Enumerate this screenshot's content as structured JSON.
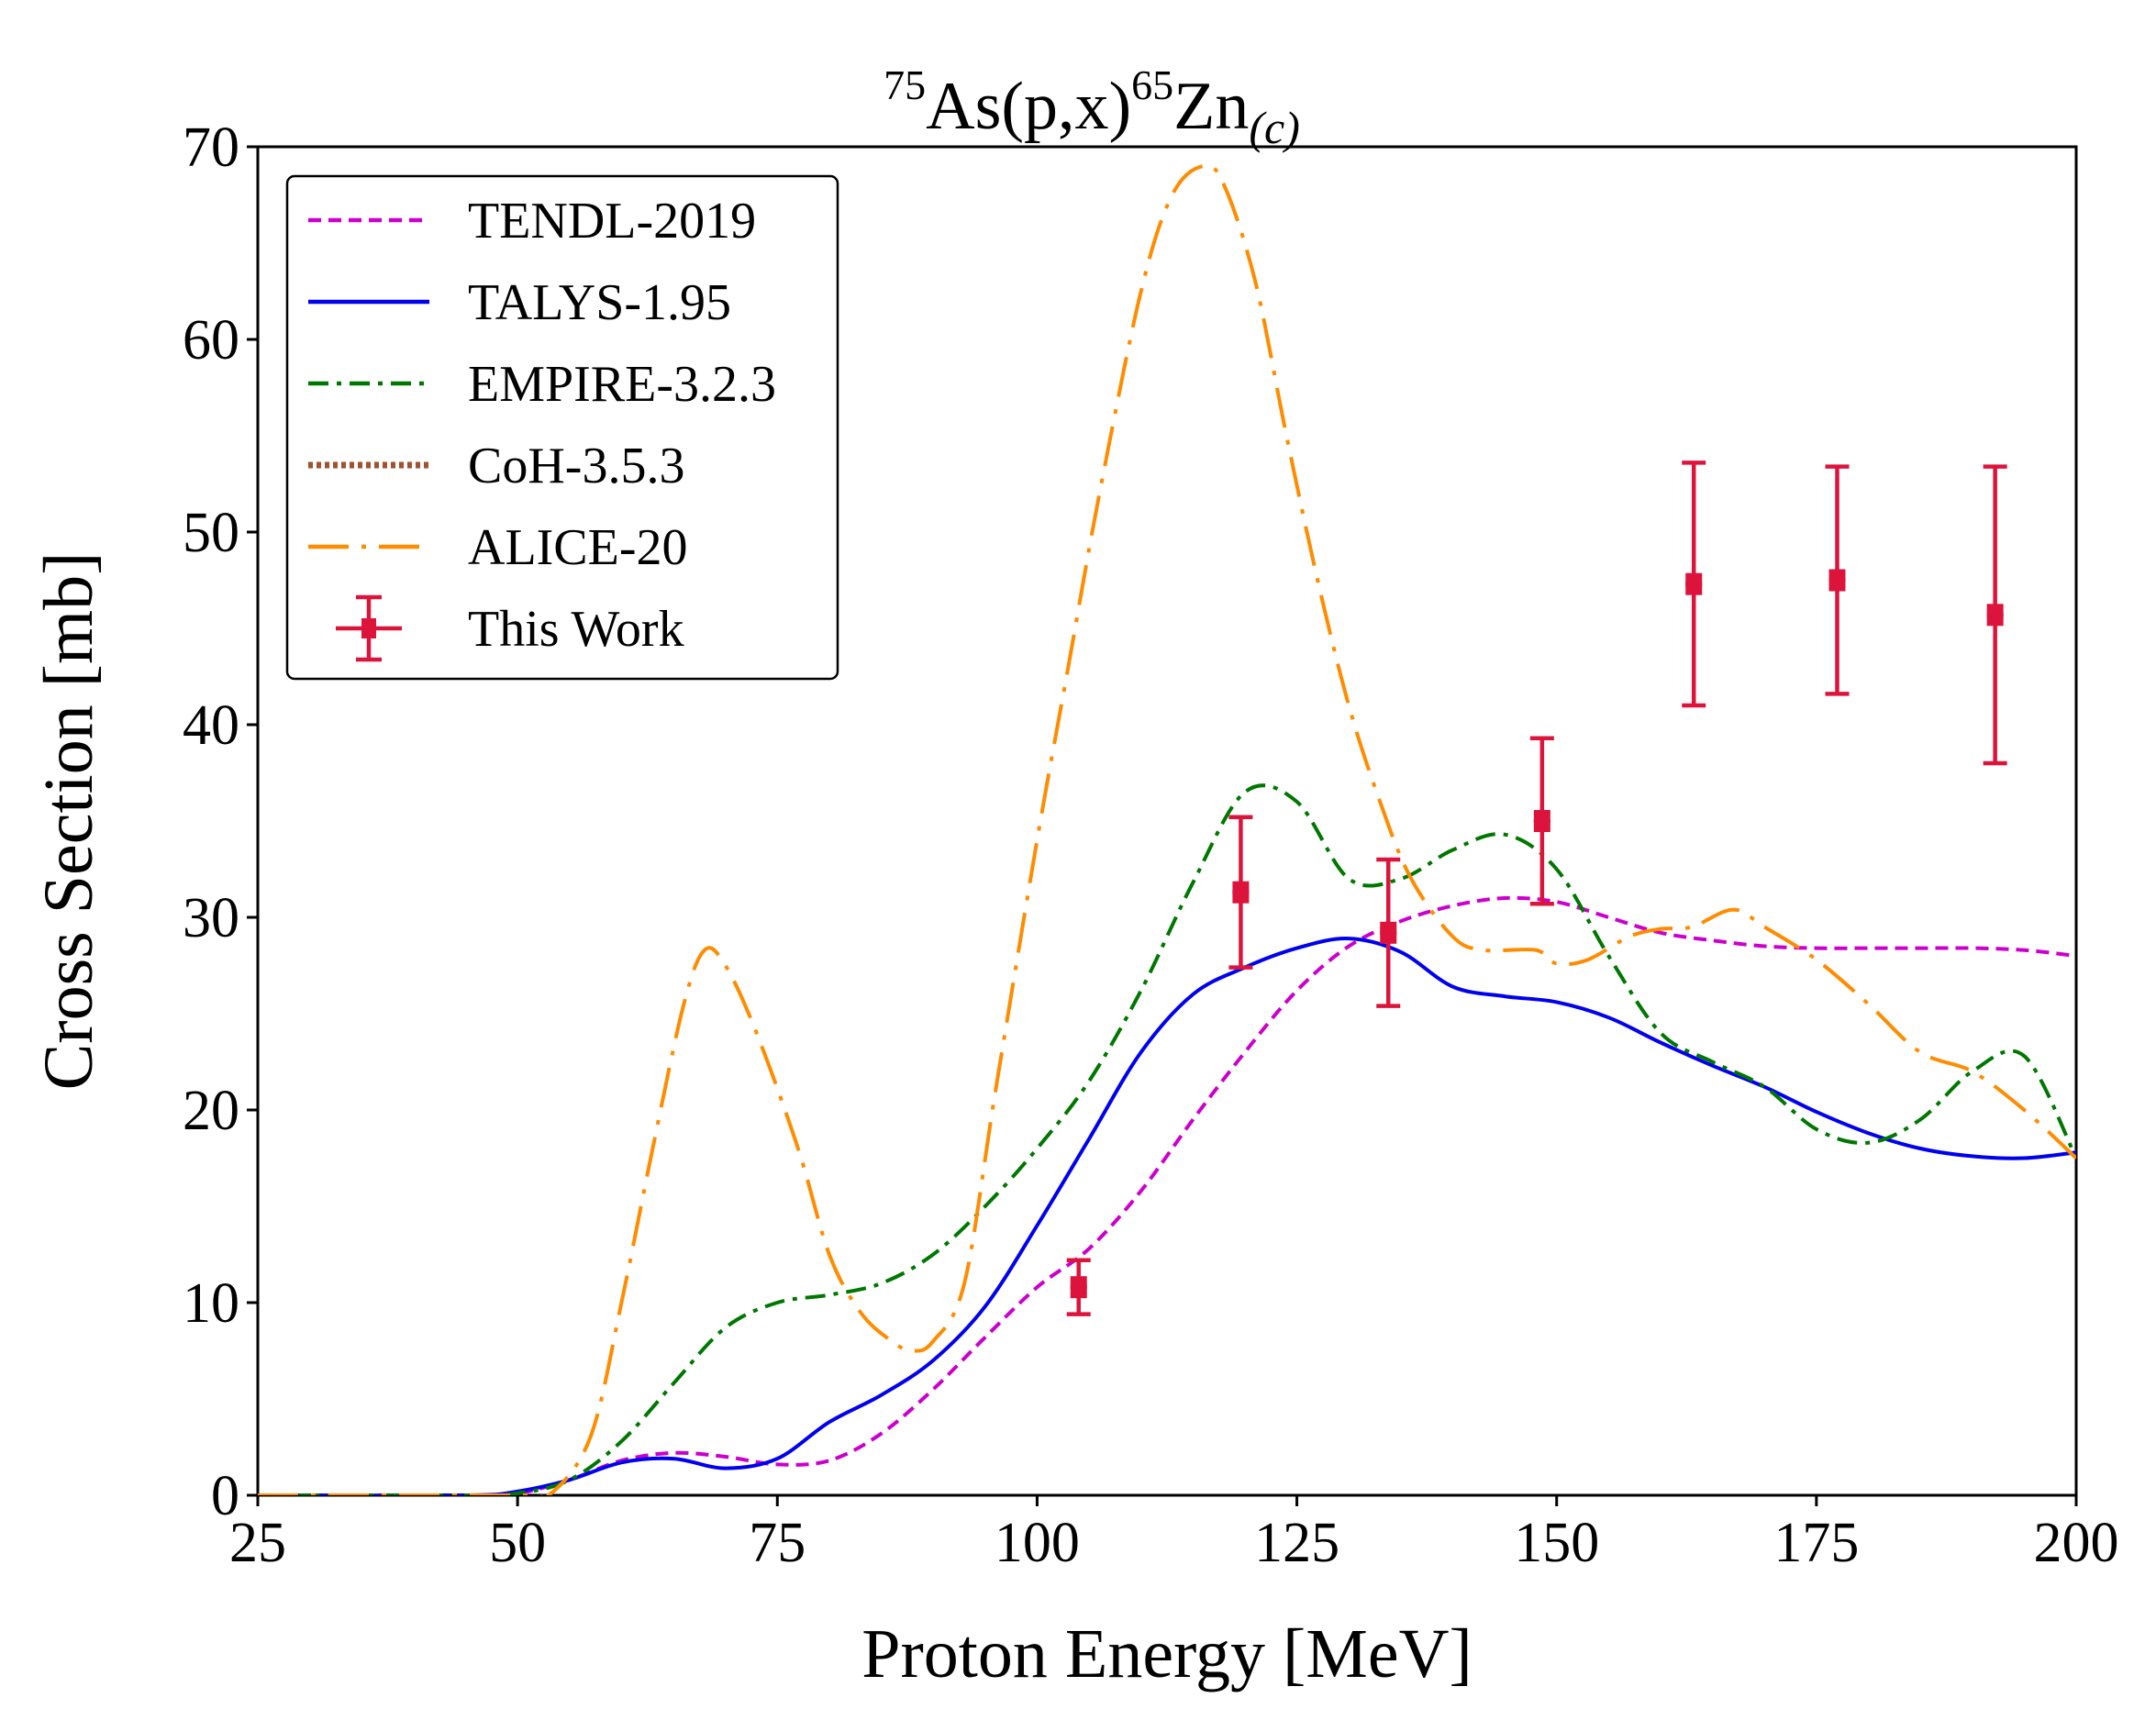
{
  "chart_data": {
    "type": "line",
    "title": {
      "pre_sup": "75",
      "main1": "As(p,x)",
      "mid_sup": "65",
      "main2": "Zn",
      "sub": "(c)"
    },
    "xlabel": "Proton Energy [MeV]",
    "ylabel": "Cross Section [mb]",
    "xlim": [
      25,
      200
    ],
    "ylim": [
      0,
      70
    ],
    "xticks": [
      25,
      50,
      75,
      100,
      125,
      150,
      175,
      200
    ],
    "yticks": [
      0,
      10,
      20,
      30,
      40,
      50,
      60,
      70
    ],
    "grid": false,
    "legend_position": "top-left",
    "series": [
      {
        "name": "TENDL-2019",
        "color": "#cc00cc",
        "style": "dashed",
        "x": [
          25,
          45,
          50,
          55,
          60,
          65,
          70,
          75,
          80,
          85,
          90,
          95,
          100,
          105,
          110,
          115,
          120,
          125,
          130,
          135,
          140,
          145,
          150,
          155,
          160,
          165,
          170,
          175,
          180,
          185,
          190,
          195,
          200
        ],
        "y": [
          0,
          0,
          0.1,
          0.8,
          1.8,
          2.2,
          2.0,
          1.6,
          1.8,
          3.2,
          5.5,
          8.2,
          10.8,
          12.8,
          15.8,
          19.5,
          23.0,
          26.2,
          28.5,
          29.8,
          30.6,
          31.0,
          30.8,
          30.0,
          29.2,
          28.8,
          28.5,
          28.4,
          28.4,
          28.4,
          28.4,
          28.3,
          28.0
        ]
      },
      {
        "name": "TALYS-1.95",
        "color": "#0000ee",
        "style": "solid",
        "x": [
          25,
          45,
          50,
          55,
          60,
          65,
          70,
          75,
          80,
          85,
          90,
          95,
          100,
          105,
          110,
          115,
          120,
          125,
          130,
          135,
          140,
          145,
          150,
          155,
          160,
          165,
          170,
          175,
          180,
          185,
          190,
          195,
          200
        ],
        "y": [
          0,
          0,
          0.2,
          0.8,
          1.7,
          1.9,
          1.4,
          1.9,
          3.8,
          5.2,
          7.0,
          9.8,
          14.0,
          18.5,
          23.0,
          26.0,
          27.4,
          28.4,
          28.9,
          28.2,
          26.4,
          25.9,
          25.6,
          24.8,
          23.5,
          22.3,
          21.2,
          19.9,
          18.8,
          18.0,
          17.6,
          17.5,
          17.8
        ]
      },
      {
        "name": "EMPIRE-3.2.3",
        "color": "#007700",
        "style": "dashdot",
        "x": [
          25,
          45,
          50,
          55,
          60,
          65,
          70,
          75,
          80,
          85,
          90,
          95,
          100,
          105,
          110,
          115,
          120,
          125,
          130,
          135,
          140,
          145,
          150,
          155,
          160,
          165,
          170,
          175,
          180,
          185,
          190,
          195,
          200
        ],
        "y": [
          0,
          0,
          0.1,
          0.8,
          2.8,
          5.8,
          8.7,
          10.0,
          10.4,
          11.0,
          12.5,
          15.0,
          18.0,
          21.5,
          26.2,
          31.8,
          36.5,
          36.0,
          32.0,
          32.0,
          33.5,
          34.3,
          32.5,
          28.0,
          24.0,
          22.5,
          21.2,
          19.0,
          18.3,
          19.5,
          22.0,
          22.8,
          17.5
        ]
      },
      {
        "name": "CoH-3.5.3",
        "color": "#a0522d",
        "style": "dotted",
        "x": [],
        "y": []
      },
      {
        "name": "ALICE-20",
        "color": "#ff8c00",
        "style": "longdashdot",
        "x": [
          25,
          50,
          53,
          57,
          60,
          63,
          66,
          68,
          70,
          73,
          77,
          80,
          83,
          86,
          88,
          90,
          93,
          96,
          100,
          103,
          106,
          110,
          113,
          116,
          118,
          121,
          124,
          127,
          130,
          133,
          136,
          140,
          143,
          148,
          150,
          153,
          157,
          160,
          163,
          167,
          170,
          175,
          180,
          185,
          190,
          195,
          200
        ],
        "y": [
          0,
          0,
          0,
          3.0,
          10.0,
          18.0,
          25.5,
          28.3,
          27.5,
          24.0,
          18.0,
          12.5,
          9.5,
          8.0,
          7.5,
          8.0,
          11.0,
          21.0,
          34.0,
          43.0,
          52.0,
          62.5,
          67.5,
          69.0,
          68.0,
          63.0,
          55.0,
          47.5,
          41.0,
          36.0,
          32.0,
          29.0,
          28.3,
          28.3,
          27.6,
          27.8,
          29.0,
          29.4,
          29.5,
          30.4,
          29.5,
          27.8,
          25.5,
          23.0,
          22.0,
          20.0,
          17.5
        ]
      }
    ],
    "measurements": {
      "name": "This Work",
      "color": "#dc143c",
      "points": [
        {
          "x": 104.0,
          "y": 10.8,
          "yerr": 1.4,
          "xerr": 0.8
        },
        {
          "x": 119.6,
          "y": 31.3,
          "yerr": 3.9,
          "xerr": 0.8
        },
        {
          "x": 133.8,
          "y": 29.2,
          "yerr": 3.8,
          "xerr": 0.8
        },
        {
          "x": 148.6,
          "y": 35.0,
          "yerr": 4.3,
          "xerr": 0.8
        },
        {
          "x": 163.2,
          "y": 47.3,
          "yerr": 6.3,
          "xerr": 0.8
        },
        {
          "x": 177.0,
          "y": 47.5,
          "yerr": 5.9,
          "xerr": 0.8
        },
        {
          "x": 192.2,
          "y": 45.7,
          "yerr": 7.7,
          "xerr": 0.8
        }
      ]
    }
  }
}
